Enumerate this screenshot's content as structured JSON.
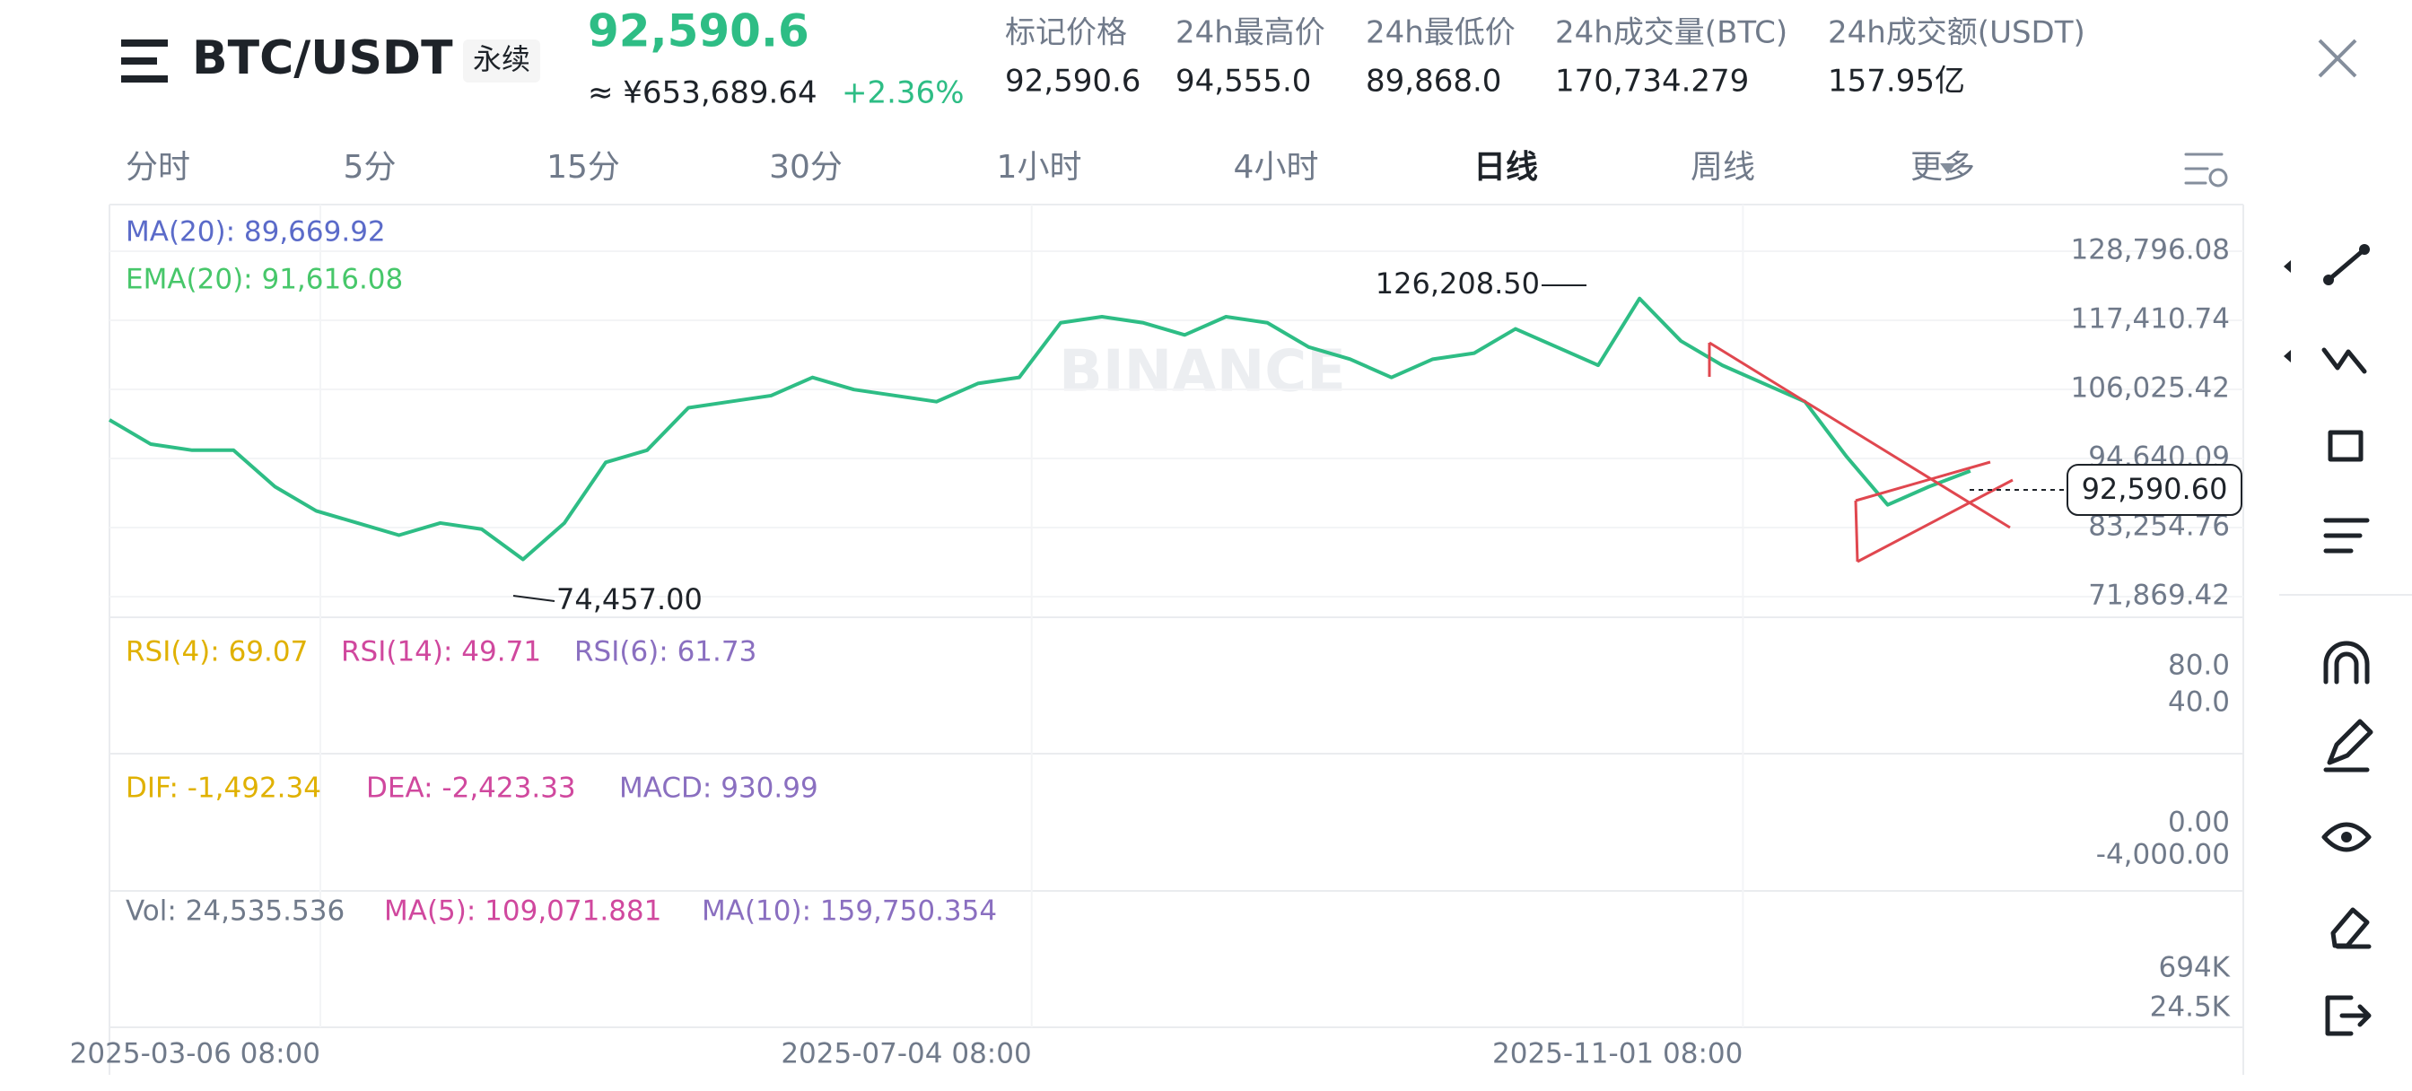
{
  "header": {
    "symbol": "BTC/USDT",
    "badge": "永续",
    "price": "92,590.6",
    "cny": "≈ ¥653,689.64",
    "change": "+2.36%",
    "stats": [
      {
        "label": "标记价格",
        "value": "92,590.6"
      },
      {
        "label": "24h最高价",
        "value": "94,555.0"
      },
      {
        "label": "24h最低价",
        "value": "89,868.0"
      },
      {
        "label": "24h成交量(BTC)",
        "value": "170,734.279"
      },
      {
        "label": "24h成交额(USDT)",
        "value": "157.95亿"
      }
    ]
  },
  "tabs": [
    "分时",
    "5分",
    "15分",
    "30分",
    "1小时",
    "4小时",
    "日线",
    "周线",
    "更多"
  ],
  "chart_data": {
    "type": "line",
    "color": "#2ebd85",
    "watermark": "BINANCE",
    "values": [
      101000,
      97000,
      96000,
      96000,
      90000,
      86000,
      84000,
      82000,
      84000,
      83000,
      78000,
      84000,
      94000,
      96000,
      103000,
      104000,
      105000,
      108000,
      106000,
      105000,
      104000,
      107000,
      108000,
      117000,
      118000,
      117000,
      115000,
      118000,
      117000,
      113000,
      111000,
      108000,
      111000,
      112000,
      116000,
      113000,
      110000,
      121000,
      114000,
      110000,
      107000,
      104000,
      95000,
      87000,
      90000,
      92590.6
    ],
    "xlim": [
      0,
      51.6
    ],
    "ylim": [
      68468,
      136485
    ],
    "yticks": [
      {
        "value": 128796.08,
        "label": "128,796.08"
      },
      {
        "value": 117410.74,
        "label": "117,410.74"
      },
      {
        "value": 106025.42,
        "label": "106,025.42"
      },
      {
        "value": 94640.09,
        "label": "94,640.09"
      },
      {
        "value": 83254.76,
        "label": "83,254.76"
      },
      {
        "value": 71869.42,
        "label": "71,869.42"
      }
    ],
    "xticks": [
      {
        "value": 5.1,
        "label": "2025-03-06 08:00"
      },
      {
        "value": 22.3,
        "label": "2025-07-04 08:00"
      },
      {
        "value": 39.5,
        "label": "2025-11-01 08:00"
      }
    ],
    "high_label": "126,208.50",
    "low_label": "74,457.00",
    "current_label": "92,590.60",
    "ma_label": "MA(20): 89,669.92",
    "ema_label": "EMA(20): 91,616.08",
    "rsi": {
      "labels": [
        "RSI(4): 69.07",
        "RSI(14): 49.71",
        "RSI(6): 61.73"
      ],
      "ticks": [
        "80.0",
        "40.0"
      ]
    },
    "macd": {
      "labels": [
        "DIF: -1,492.34",
        "DEA: -2,423.33",
        "MACD: 930.99"
      ],
      "ticks": [
        "0.00",
        "-4,000.00"
      ]
    },
    "vol": {
      "labels": [
        "Vol: 24,535.536",
        "MA(5): 109,071.881",
        "MA(10): 159,750.354"
      ],
      "ticks": [
        "694K",
        "24.5K"
      ]
    }
  }
}
